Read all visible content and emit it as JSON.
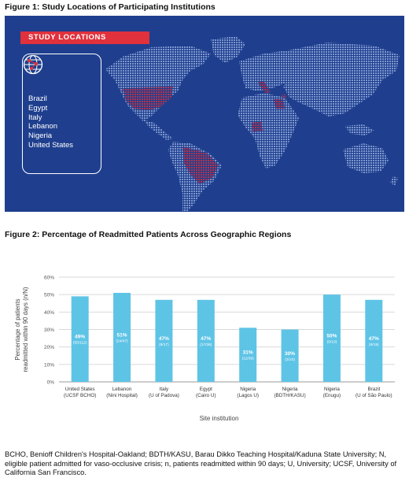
{
  "figure1": {
    "title": "Figure 1: Study Locations of Participating Institutions",
    "banner": "STUDY LOCATIONS",
    "globe_icon": "globe-network-icon",
    "locations": [
      "Brazil",
      "Egypt",
      "Italy",
      "Lebanon",
      "Nigeria",
      "United States"
    ],
    "colors": {
      "background": "#1f3f8e",
      "land_dot": "#7e97cf",
      "highlight": "#b2334f",
      "banner": "#e0313c"
    }
  },
  "figure2": {
    "title": "Figure 2: Percentage of Readmitted Patients Across Geographic Regions"
  },
  "chart_data": {
    "type": "bar",
    "categories": [
      [
        "United States",
        "(UCSF BCHO)"
      ],
      [
        "Lebanon",
        "(Nini Hospital)"
      ],
      [
        "Italy",
        "(U of Padova)"
      ],
      [
        "Egypt",
        "(Cairo U)"
      ],
      [
        "Nigeria",
        "(Lagos U)"
      ],
      [
        "Nigeria",
        "(BDTH/KASU)"
      ],
      [
        "Nigeria",
        "(Enugu)"
      ],
      [
        "Brazil",
        "(U of São Paulo)"
      ]
    ],
    "values": [
      49,
      51,
      47,
      47,
      31,
      30,
      50,
      47
    ],
    "bar_labels": [
      "49%",
      "51%",
      "47%",
      "47%",
      "31%",
      "30%",
      "50%",
      "47%"
    ],
    "bar_sublabels": [
      "(55/112)",
      "(24/47)",
      "(8/17)",
      "(17/36)",
      "(12/39)",
      "(3/10)",
      "(5/10)",
      "(9/19)"
    ],
    "ylabel": [
      "Percentage of patients",
      "readmitted within 90 days (n/N)"
    ],
    "xlabel": "Site institution",
    "ylim": [
      0,
      60
    ],
    "yticks": [
      "0%",
      "10%",
      "20%",
      "30%",
      "40%",
      "50%",
      "60%"
    ],
    "grid": true,
    "bar_color": "#5ec4e6"
  },
  "footnote": "BCHO, Benioff Children's Hospital-Oakland; BDTH/KASU, Barau Dikko Teaching Hospital/Kaduna State University; N, eligible patient admitted for vaso-occlusive crisis; n, patients readmitted within 90 days; U, University; UCSF, University of California San Francisco."
}
